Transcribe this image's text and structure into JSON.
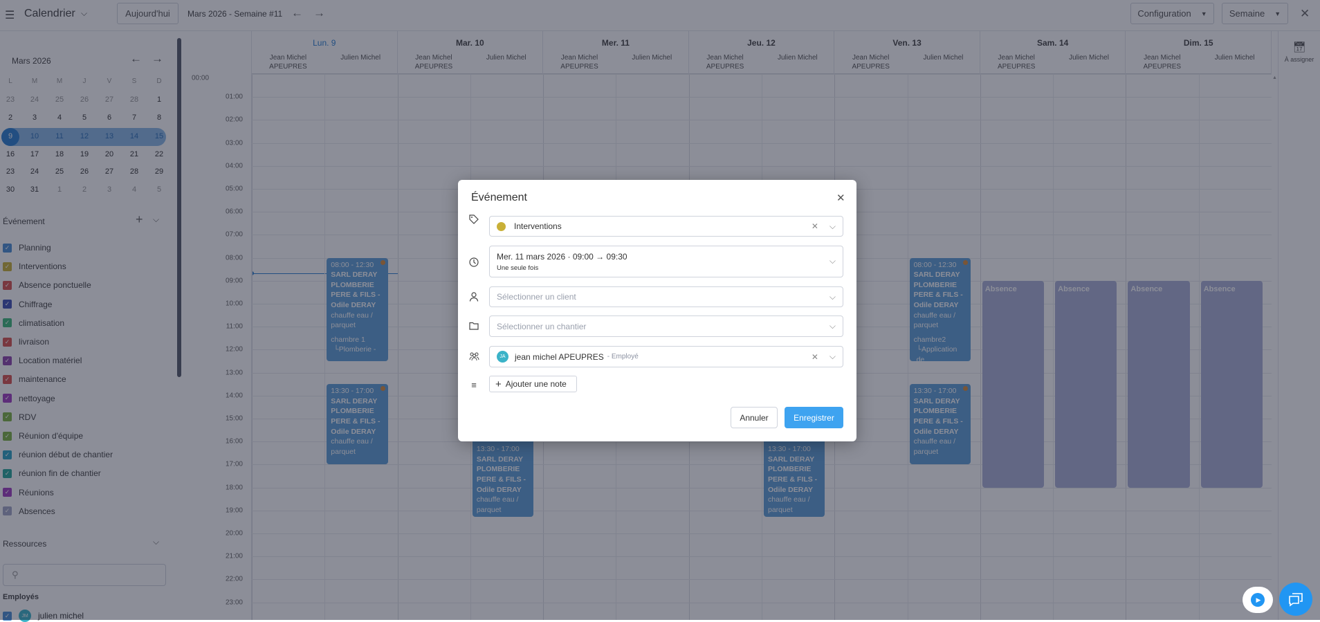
{
  "topbar": {
    "app_title": "Calendrier",
    "today_label": "Aujourd'hui",
    "period_label": "Mars 2026 - Semaine #11",
    "config_label": "Configuration",
    "view_label": "Semaine"
  },
  "mini_calendar": {
    "month_label": "Mars 2026",
    "weekdays": [
      "L",
      "M",
      "M",
      "J",
      "V",
      "S",
      "D"
    ],
    "weeks": [
      [
        {
          "d": "23",
          "muted": true
        },
        {
          "d": "24",
          "muted": true
        },
        {
          "d": "25",
          "muted": true
        },
        {
          "d": "26",
          "muted": true
        },
        {
          "d": "27",
          "muted": true
        },
        {
          "d": "28",
          "muted": true
        },
        {
          "d": "1"
        }
      ],
      [
        {
          "d": "2"
        },
        {
          "d": "3"
        },
        {
          "d": "4"
        },
        {
          "d": "5"
        },
        {
          "d": "6"
        },
        {
          "d": "7"
        },
        {
          "d": "8"
        }
      ],
      [
        {
          "d": "9",
          "selected": true
        },
        {
          "d": "10"
        },
        {
          "d": "11"
        },
        {
          "d": "12"
        },
        {
          "d": "13"
        },
        {
          "d": "14"
        },
        {
          "d": "15"
        }
      ],
      [
        {
          "d": "16"
        },
        {
          "d": "17"
        },
        {
          "d": "18"
        },
        {
          "d": "19"
        },
        {
          "d": "20"
        },
        {
          "d": "21"
        },
        {
          "d": "22"
        }
      ],
      [
        {
          "d": "23"
        },
        {
          "d": "24"
        },
        {
          "d": "25"
        },
        {
          "d": "26"
        },
        {
          "d": "27"
        },
        {
          "d": "28"
        },
        {
          "d": "29"
        }
      ],
      [
        {
          "d": "30"
        },
        {
          "d": "31"
        },
        {
          "d": "1",
          "muted": true
        },
        {
          "d": "2",
          "muted": true
        },
        {
          "d": "3",
          "muted": true
        },
        {
          "d": "4",
          "muted": true
        },
        {
          "d": "5",
          "muted": true
        }
      ]
    ],
    "highlighted_week": 2
  },
  "event_types": {
    "title": "Événement",
    "items": [
      {
        "label": "Planning",
        "color": "#4a8fd4",
        "checked": true
      },
      {
        "label": "Interventions",
        "color": "#c9b037",
        "checked": true
      },
      {
        "label": "Absence ponctuelle",
        "color": "#d9534f",
        "checked": true
      },
      {
        "label": "Chiffrage",
        "color": "#3f51b5",
        "checked": true
      },
      {
        "label": "climatisation",
        "color": "#3db87a",
        "checked": true
      },
      {
        "label": "livraison",
        "color": "#d9534f",
        "checked": true
      },
      {
        "label": "Location matériel",
        "color": "#8e44ad",
        "checked": true
      },
      {
        "label": "maintenance",
        "color": "#d9534f",
        "checked": true
      },
      {
        "label": "nettoyage",
        "color": "#a03cc0",
        "checked": true
      },
      {
        "label": "RDV",
        "color": "#7cb342",
        "checked": true
      },
      {
        "label": "Réunion d'équipe",
        "color": "#7cb342",
        "checked": true
      },
      {
        "label": "réunion début de chantier",
        "color": "#2aa3c4",
        "checked": true
      },
      {
        "label": "réunion fin de chantier",
        "color": "#26a69a",
        "checked": true
      },
      {
        "label": "Réunions",
        "color": "#a03cc0",
        "checked": true
      },
      {
        "label": "Absences",
        "color": "#a2a6c6",
        "checked": true
      }
    ]
  },
  "resources_panel": {
    "title": "Ressources",
    "search_placeholder": "",
    "group_label": "Employés",
    "employees": [
      {
        "initials": "JM",
        "name": "julien michel",
        "checked": true
      }
    ]
  },
  "calendar": {
    "unassigned_label": "À assigner",
    "days": [
      {
        "label": "Lun. 9",
        "today": true
      },
      {
        "label": "Mar. 10"
      },
      {
        "label": "Mer. 11"
      },
      {
        "label": "Jeu. 12"
      },
      {
        "label": "Ven. 13"
      },
      {
        "label": "Sam. 14"
      },
      {
        "label": "Dim. 15"
      }
    ],
    "resources": [
      {
        "line1": "Jean Michel",
        "line2": "APEUPRES"
      },
      {
        "line1": "Julien Michel",
        "line2": ""
      }
    ],
    "hours": [
      "00:00",
      "01:00",
      "02:00",
      "03:00",
      "04:00",
      "05:00",
      "06:00",
      "07:00",
      "08:00",
      "09:00",
      "10:00",
      "11:00",
      "12:00",
      "13:00",
      "14:00",
      "15:00",
      "16:00",
      "17:00",
      "18:00",
      "19:00",
      "20:00",
      "21:00",
      "22:00",
      "23:00"
    ],
    "current_time": "08:40",
    "event_color": "#5f9fd6",
    "absence_color": "#aab0d6",
    "events": [
      {
        "day": 0,
        "resource": 1,
        "start": "08:00",
        "end": "12:30",
        "time": "08:00 - 12:30",
        "title": "SARL DERAY PLOMBERIE PERE & FILS - Odile DERAY",
        "desc": "chauffe eau / parquet",
        "room": "chambre 1",
        "task": "└Plomberie -"
      },
      {
        "day": 0,
        "resource": 1,
        "start": "13:30",
        "end": "17:00",
        "time": "13:30 - 17:00",
        "title": "SARL DERAY PLOMBERIE PERE & FILS - Odile DERAY",
        "desc": "chauffe eau / parquet"
      },
      {
        "day": 1,
        "resource": 1,
        "start": "13:30",
        "end": "17:00",
        "time": "13:30 - 17:00",
        "title": "SARL DERAY PLOMBERIE PERE & FILS - Odile DERAY",
        "desc": "chauffe eau / parquet"
      },
      {
        "day": 3,
        "resource": 1,
        "start": "13:30",
        "end": "17:00",
        "time": "13:30 - 17:00",
        "title": "SARL DERAY PLOMBERIE PERE & FILS - Odile DERAY",
        "desc": "chauffe eau / parquet"
      },
      {
        "day": 4,
        "resource": 1,
        "start": "08:00",
        "end": "12:30",
        "time": "08:00 - 12:30",
        "title": "SARL DERAY PLOMBERIE PERE & FILS - Odile DERAY",
        "desc": "chauffe eau / parquet",
        "room": "chambre2",
        "task": "└Application de"
      },
      {
        "day": 4,
        "resource": 1,
        "start": "13:30",
        "end": "17:00",
        "time": "13:30 - 17:00",
        "title": "SARL DERAY PLOMBERIE PERE & FILS - Odile DERAY",
        "desc": "chauffe eau / parquet"
      }
    ],
    "absences": [
      {
        "day": 5,
        "resource": 0,
        "start": "09:00",
        "end": "18:00",
        "label": "Absence"
      },
      {
        "day": 5,
        "resource": 1,
        "start": "09:00",
        "end": "18:00",
        "label": "Absence"
      },
      {
        "day": 6,
        "resource": 0,
        "start": "09:00",
        "end": "18:00",
        "label": "Absence"
      },
      {
        "day": 6,
        "resource": 1,
        "start": "09:00",
        "end": "18:00",
        "label": "Absence"
      }
    ]
  },
  "modal": {
    "title": "Événement",
    "type": {
      "value": "Interventions",
      "color": "#c9b037"
    },
    "date": {
      "value": "Mer. 11 mars 2026 · 09:00 → 09:30",
      "recurrence": "Une seule fois"
    },
    "client": {
      "placeholder": "Sélectionner un client"
    },
    "site": {
      "placeholder": "Sélectionner un chantier"
    },
    "assignee": {
      "initials": "JA",
      "name": "jean michel APEUPRES",
      "role": "- Employé",
      "avatar_color": "#3bb3c8"
    },
    "add_note_label": "Ajouter une note",
    "cancel_label": "Annuler",
    "save_label": "Enregistrer",
    "accent": "#3ea3f0"
  }
}
